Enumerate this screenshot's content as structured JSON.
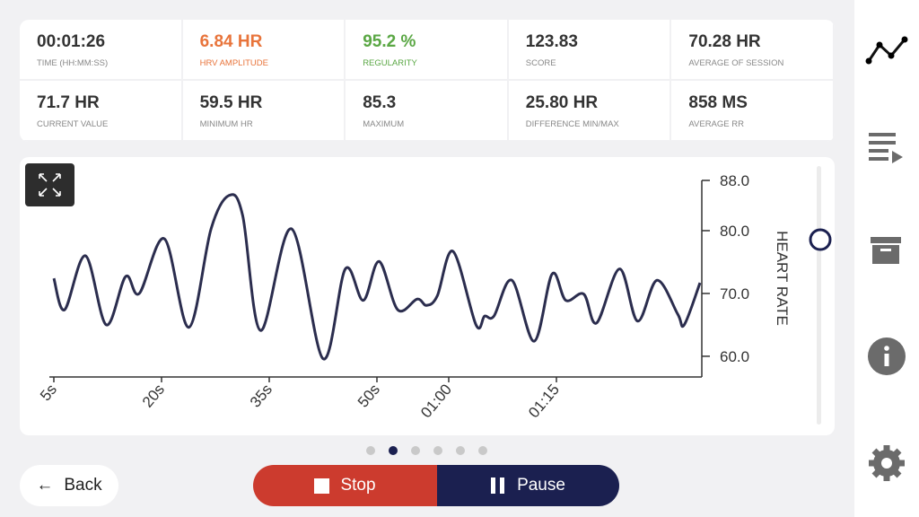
{
  "stats": [
    {
      "value": "00:01:26",
      "label": "TIME (HH:MM:SS)"
    },
    {
      "value": "6.84 HR",
      "label": "HRV AMPLITUDE",
      "color": "#e8743b"
    },
    {
      "value": "95.2 %",
      "label": "REGULARITY",
      "color": "#5aa744"
    },
    {
      "value": "123.83",
      "label": "SCORE"
    },
    {
      "value": "70.28 HR",
      "label": "AVERAGE OF SESSION"
    },
    {
      "value": "71.7 HR",
      "label": "CURRENT VALUE"
    },
    {
      "value": "59.5 HR",
      "label": "MINIMUM HR"
    },
    {
      "value": "85.3",
      "label": "MAXIMUM"
    },
    {
      "value": "25.80 HR",
      "label": "DIFFERENCE MIN/MAX"
    },
    {
      "value": "858 MS",
      "label": "AVERAGE RR"
    }
  ],
  "chart_data": {
    "type": "line",
    "y_label": "HEART RATE",
    "x": [
      5,
      6.5,
      9.4,
      12.3,
      15,
      16.9,
      20.4,
      23.8,
      26.9,
      29.4,
      31.3,
      33.8,
      38.1,
      42.5,
      45.6,
      48.1,
      50.3,
      52.9,
      55.6,
      56.9,
      58.4,
      60.6,
      63.8,
      65,
      66.3,
      68.8,
      71.9,
      74.4,
      76.3,
      78.8,
      80.6,
      83.8,
      86.3,
      89,
      91.9,
      92.8,
      95
    ],
    "series": [
      {
        "color": "#2b2d4e",
        "values": [
          72.4,
          67.4,
          76,
          65,
          72.7,
          70,
          78.7,
          64.6,
          80.3,
          85.6,
          82.4,
          64.1,
          80.3,
          59.6,
          73.9,
          68.9,
          75.1,
          67.4,
          69.1,
          68.1,
          69.6,
          76.7,
          65,
          66.4,
          66.4,
          72.1,
          62.4,
          73.1,
          68.9,
          69.9,
          65.3,
          73.9,
          65.6,
          72.1,
          66.7,
          65,
          71.7
        ]
      }
    ],
    "xlim": [
      5,
      95
    ],
    "ylim": [
      56.7,
      88
    ],
    "xticks": [
      {
        "value": 5,
        "label": "5s"
      },
      {
        "value": 20,
        "label": "20s"
      },
      {
        "value": 35,
        "label": "35s"
      },
      {
        "value": 50,
        "label": "50s"
      },
      {
        "value": 60,
        "label": "01:00"
      },
      {
        "value": 75,
        "label": "01:15"
      }
    ],
    "yticks": [
      {
        "value": 60,
        "label": "60.0"
      },
      {
        "value": 70,
        "label": "70.0"
      },
      {
        "value": 80,
        "label": "80.0"
      },
      {
        "value": 88,
        "label": "88.0"
      }
    ]
  },
  "buttons": {
    "back": "Back",
    "stop": "Stop",
    "pause": "Pause"
  }
}
